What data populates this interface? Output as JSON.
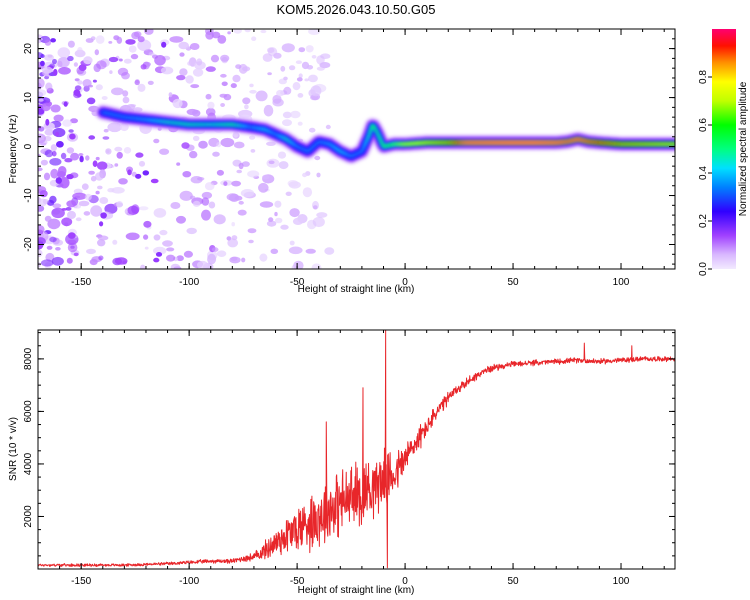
{
  "title": "KOM5.2026.043.10.50.G05",
  "colors": {
    "snr_line": "#e8262a",
    "axis": "#000000",
    "background": "#ffffff"
  },
  "chart_data": [
    {
      "type": "heatmap",
      "name": "spectrogram",
      "xlabel": "Height of straight line (km)",
      "ylabel": "Frequency (Hz)",
      "xlim": [
        -170,
        125
      ],
      "ylim": [
        -25,
        24
      ],
      "xticks": [
        -150,
        -100,
        -50,
        0,
        50,
        100
      ],
      "xtick_labels": [
        "-150",
        "-100",
        "-50",
        "0",
        "50",
        "100"
      ],
      "yticks": [
        -20,
        -10,
        0,
        10,
        20
      ],
      "ytick_labels": [
        "-20",
        "-10",
        "0",
        "10",
        "20"
      ],
      "ridge": {
        "x": [
          -140,
          -130,
          -120,
          -110,
          -100,
          -90,
          -80,
          -72,
          -65,
          -60,
          -55,
          -50,
          -45,
          -40,
          -35,
          -30,
          -25,
          -20,
          -17,
          -15,
          -13,
          -10,
          -5,
          0,
          10,
          20,
          30,
          40,
          50,
          60,
          70,
          75,
          80,
          85,
          90,
          100,
          110,
          120,
          125
        ],
        "freq": [
          7,
          6,
          5.5,
          5,
          4.5,
          4.5,
          4.5,
          4,
          3.5,
          2.5,
          1.5,
          0,
          -1,
          1,
          0.5,
          -1,
          -2,
          -1,
          2,
          4.5,
          3,
          0,
          0.5,
          0.5,
          0.8,
          0.8,
          0.8,
          0.8,
          0.8,
          0.8,
          0.8,
          1,
          1.5,
          1,
          0.8,
          0.5,
          0.5,
          0.5,
          0.5
        ],
        "amplitude": [
          0.3,
          0.3,
          0.32,
          0.38,
          0.4,
          0.38,
          0.42,
          0.3,
          0.35,
          0.3,
          0.38,
          0.3,
          0.3,
          0.3,
          0.32,
          0.35,
          0.3,
          0.3,
          0.38,
          0.45,
          0.4,
          0.45,
          0.5,
          0.6,
          0.65,
          0.7,
          0.85,
          0.88,
          0.9,
          0.9,
          0.85,
          0.8,
          0.82,
          0.78,
          0.75,
          0.7,
          0.68,
          0.66,
          0.66
        ]
      }
    },
    {
      "type": "line",
      "name": "snr",
      "xlabel": "Height of straight line (km)",
      "ylabel": "SNR (10 * v/v)",
      "xlim": [
        -170,
        125
      ],
      "ylim": [
        0,
        9100
      ],
      "xticks": [
        -150,
        -100,
        -50,
        0,
        50,
        100
      ],
      "xtick_labels": [
        "-150",
        "-100",
        "-50",
        "0",
        "50",
        "100"
      ],
      "yticks": [
        2000,
        4000,
        6000,
        8000
      ],
      "ytick_labels": [
        "2000",
        "4000",
        "6000",
        "8000"
      ],
      "series": [
        {
          "name": "SNR",
          "x": [
            -170,
            -150,
            -130,
            -110,
            -100,
            -90,
            -80,
            -75,
            -70,
            -65,
            -60,
            -55,
            -50,
            -45,
            -40,
            -35,
            -30,
            -25,
            -20,
            -15,
            -10,
            -5,
            0,
            5,
            10,
            15,
            20,
            25,
            30,
            35,
            40,
            50,
            60,
            70,
            80,
            90,
            100,
            110,
            125
          ],
          "y": [
            150,
            150,
            150,
            200,
            250,
            300,
            300,
            400,
            450,
            700,
            1000,
            1300,
            1500,
            1800,
            2000,
            2300,
            2500,
            2700,
            2900,
            3200,
            3400,
            3600,
            4200,
            4800,
            5400,
            6000,
            6500,
            6900,
            7200,
            7450,
            7650,
            7800,
            7850,
            7900,
            7950,
            7900,
            7950,
            8000,
            8000
          ],
          "noise": [
            60,
            60,
            60,
            70,
            80,
            90,
            100,
            150,
            200,
            400,
            700,
            900,
            1100,
            1300,
            1400,
            1500,
            1500,
            1500,
            1500,
            1400,
            1300,
            1000,
            800,
            600,
            450,
            350,
            300,
            250,
            200,
            180,
            150,
            120,
            120,
            120,
            120,
            120,
            120,
            110,
            110
          ],
          "spikes": [
            {
              "x": -36.5,
              "y": 5600
            },
            {
              "x": -19.5,
              "y": 6900
            },
            {
              "x": -9,
              "y": 9100
            },
            {
              "x": -8.2,
              "y": 50
            },
            {
              "x": 83,
              "y": 8600
            },
            {
              "x": 105,
              "y": 8500
            }
          ]
        }
      ]
    }
  ],
  "colorbar": {
    "label": "Normalized spectral amplitude",
    "range": [
      0,
      1
    ],
    "ticks": [
      0,
      0.2,
      0.4,
      0.6,
      0.8
    ],
    "tick_labels": [
      "0.0",
      "0.2",
      "0.4",
      "0.6",
      "0.8"
    ]
  }
}
